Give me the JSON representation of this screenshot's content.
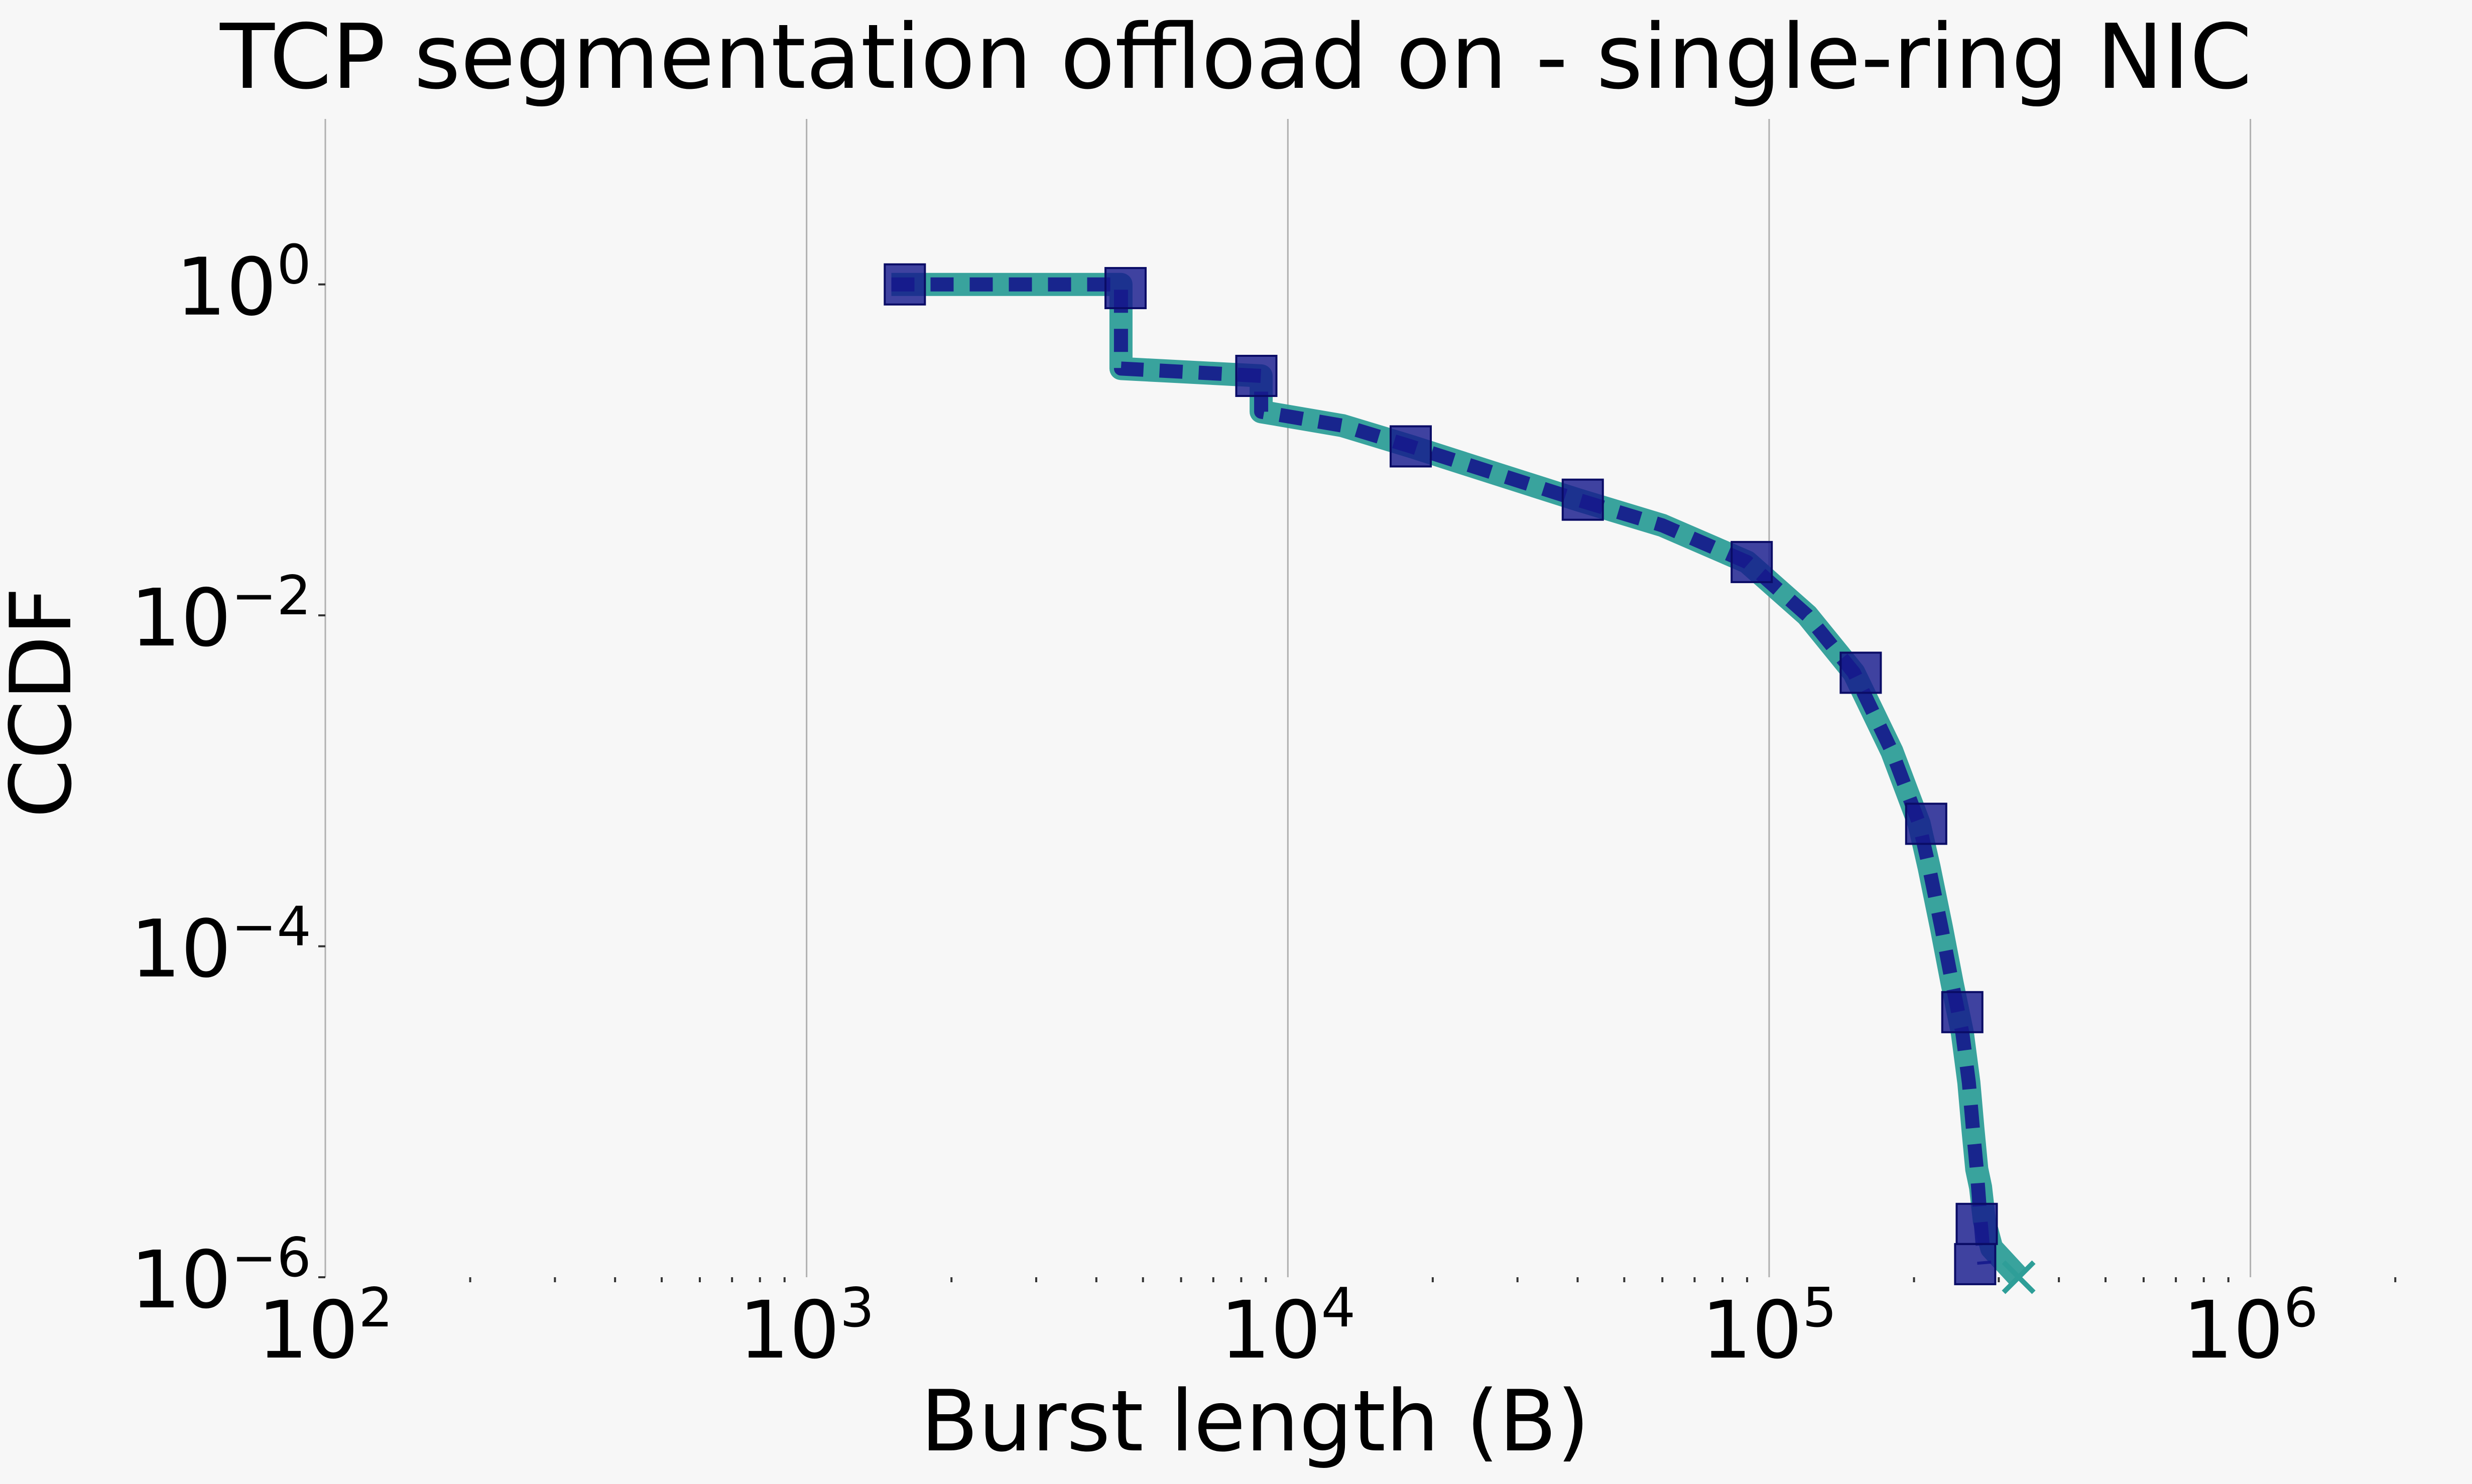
{
  "chart_data": {
    "type": "line",
    "title": "TCP segmentation offload on - single-ring NIC",
    "xlabel": "Burst length (B)",
    "ylabel": "CCDF",
    "x_scale": "log",
    "y_scale": "log",
    "xlim": [
      100,
      3000000
    ],
    "ylim": [
      1e-06,
      10
    ],
    "grid": "x-major-only",
    "legend": "none",
    "x_ticks": [
      {
        "base": "10",
        "exp": "2",
        "value": 100
      },
      {
        "base": "10",
        "exp": "3",
        "value": 1000
      },
      {
        "base": "10",
        "exp": "4",
        "value": 10000
      },
      {
        "base": "10",
        "exp": "5",
        "value": 100000
      },
      {
        "base": "10",
        "exp": "6",
        "value": 1000000
      }
    ],
    "y_ticks": [
      {
        "base": "10",
        "exp": "0",
        "value": 1
      },
      {
        "base": "10",
        "exp": "−2",
        "value": 0.01
      },
      {
        "base": "10",
        "exp": "−4",
        "value": 0.0001
      },
      {
        "base": "10",
        "exp": "−6",
        "value": 1e-06
      }
    ],
    "series": [
      {
        "style": "solid-teal",
        "color": "#2e9e98",
        "x": [
          1500,
          4500,
          4500,
          8800,
          8800,
          13000,
          18000,
          27000,
          40000,
          60000,
          90000,
          120000,
          150000,
          180000,
          205000,
          215000,
          228000,
          240000,
          252000,
          260000,
          265000,
          270000,
          275000,
          280000,
          290000,
          330000
        ],
        "y": [
          1.0,
          1.0,
          0.31,
          0.28,
          0.17,
          0.14,
          0.105,
          0.072,
          0.05,
          0.035,
          0.021,
          0.01,
          0.0045,
          0.0015,
          0.00055,
          0.0003,
          0.00013,
          6e-05,
          3e-05,
          1.5e-05,
          8e-06,
          4.5e-06,
          3.5e-06,
          2.2e-06,
          1.5e-06,
          1e-06
        ]
      },
      {
        "style": "dashed-navy-squares",
        "color": "#161a8c",
        "x": [
          1500,
          4500,
          4500,
          8800,
          8800,
          13000,
          18000,
          27000,
          40000,
          60000,
          90000,
          120000,
          150000,
          180000,
          205000,
          215000,
          228000,
          240000,
          252000,
          260000,
          265000,
          270000,
          275000,
          280000
        ],
        "y": [
          1.0,
          1.0,
          0.31,
          0.28,
          0.17,
          0.14,
          0.105,
          0.072,
          0.05,
          0.035,
          0.021,
          0.01,
          0.0045,
          0.0015,
          0.00055,
          0.0003,
          0.00013,
          6e-05,
          3e-05,
          1.5e-05,
          8e-06,
          4.5e-06,
          2.2e-06,
          1.2e-06
        ],
        "markers": {
          "x": [
            1600,
            4600,
            8600,
            18000,
            41000,
            92000,
            155000,
            212000,
            252000,
            270000,
            268000
          ],
          "y": [
            1.0,
            0.95,
            0.28,
            0.105,
            0.05,
            0.021,
            0.0045,
            0.00055,
            4e-05,
            2.1e-06,
            1.2e-06
          ]
        }
      }
    ]
  }
}
